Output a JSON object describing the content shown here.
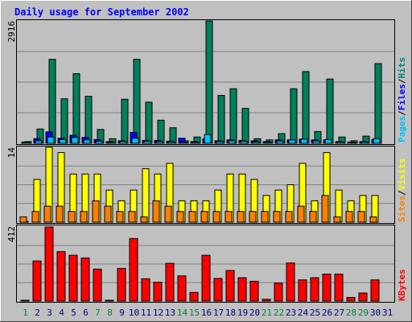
{
  "chart_data": {
    "type": "bar",
    "title": "Daily usage for September 2002",
    "days": [
      "1",
      "2",
      "3",
      "4",
      "5",
      "6",
      "7",
      "8",
      "9",
      "10",
      "11",
      "12",
      "13",
      "14",
      "15",
      "16",
      "17",
      "18",
      "19",
      "20",
      "21",
      "22",
      "23",
      "24",
      "25",
      "26",
      "27",
      "28",
      "29",
      "30",
      "31"
    ],
    "weekend_days": [
      "1",
      "7",
      "8",
      "14",
      "15",
      "21",
      "22",
      "28",
      "29"
    ],
    "day_colors": {
      "weekday": "#000080",
      "weekend": "#007F40"
    },
    "panels": {
      "hits_files_pages": {
        "max_label": "2916",
        "ymax": 2916,
        "legend": [
          {
            "text": "Pages",
            "color": "#00C0FF"
          },
          {
            "text": "/",
            "color": "#000000"
          },
          {
            "text": "Files",
            "color": "#0000FF"
          },
          {
            "text": "/",
            "color": "#000000"
          },
          {
            "text": "Hits",
            "color": "#008080"
          }
        ],
        "series": [
          {
            "name": "Hits",
            "color": "#00805C",
            "values": [
              40,
              340,
              2000,
              1060,
              1660,
              1120,
              330,
              110,
              1050,
              2000,
              980,
              550,
              370,
              60,
              150,
              2916,
              1140,
              1300,
              830,
              110,
              80,
              230,
              1300,
              1710,
              280,
              1530,
              150,
              60,
              170,
              1900,
              0
            ]
          },
          {
            "name": "Files",
            "color": "#0000FF",
            "values": [
              30,
              110,
              270,
              120,
              190,
              140,
              90,
              40,
              60,
              260,
              70,
              70,
              50,
              120,
              40,
              110,
              60,
              80,
              70,
              60,
              40,
              80,
              80,
              100,
              80,
              80,
              40,
              30,
              40,
              90,
              0
            ]
          },
          {
            "name": "Pages",
            "color": "#00C0FF",
            "values": [
              25,
              60,
              150,
              90,
              140,
              80,
              50,
              25,
              45,
              120,
              50,
              40,
              35,
              25,
              25,
              210,
              45,
              60,
              50,
              35,
              25,
              55,
              80,
              100,
              55,
              90,
              30,
              20,
              35,
              110,
              0
            ]
          }
        ]
      },
      "visits_sites": {
        "max_label": "14",
        "ymax": 14,
        "legend": [
          {
            "text": "Sites",
            "color": "#FF8000"
          },
          {
            "text": "/",
            "color": "#000000"
          },
          {
            "text": "Visits",
            "color": "#FFFF00"
          }
        ],
        "series": [
          {
            "name": "Visits",
            "color": "#FFFF00",
            "values": [
              0,
              8,
              14,
              13,
              9,
              9,
              9,
              6,
              4,
              6,
              10,
              9,
              11,
              4,
              4,
              4,
              6,
              9,
              9,
              8,
              5,
              6,
              7,
              11,
              4,
              13,
              6,
              4,
              5,
              5,
              0
            ]
          },
          {
            "name": "Sites",
            "color": "#FF8000",
            "values": [
              1,
              2,
              3,
              3,
              2,
              2,
              4,
              3,
              2,
              2,
              1,
              4,
              3,
              2,
              2,
              2,
              2,
              2,
              2,
              2,
              2,
              2,
              2,
              3,
              2,
              5,
              1,
              2,
              2,
              1,
              0
            ]
          }
        ]
      },
      "kbytes": {
        "max_label": "412",
        "ymax": 412,
        "legend": [
          {
            "text": "KBytes",
            "color": "#FF0000"
          }
        ],
        "series": [
          {
            "name": "KBytes",
            "color": "#FF0000",
            "values": [
              0,
              223,
              412,
              275,
              255,
              240,
              178,
              0,
              182,
              348,
              124,
              105,
              210,
              140,
              48,
              255,
              126,
              170,
              130,
              110,
              10,
              100,
              212,
              118,
              130,
              150,
              150,
              20,
              45,
              118,
              0
            ]
          }
        ]
      }
    },
    "colors": {
      "background": "#C0C0C0",
      "frame_border": "#000000",
      "grid": "#808080",
      "title": "#0000FF"
    }
  }
}
